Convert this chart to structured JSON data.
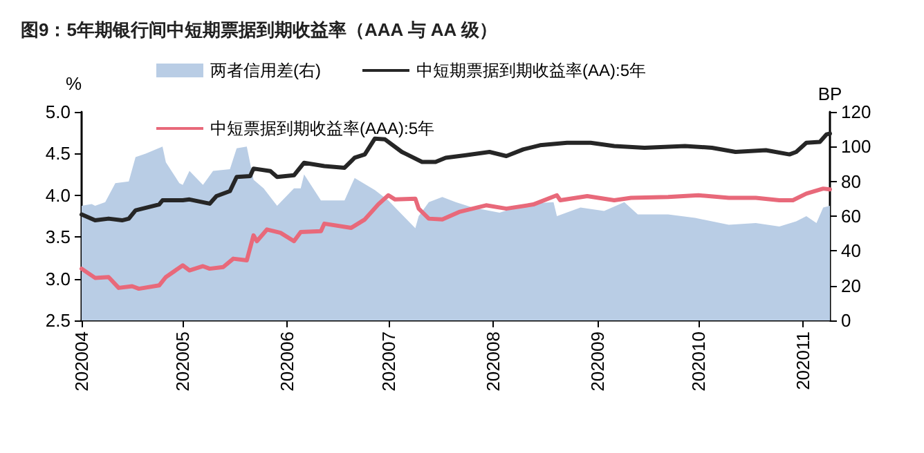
{
  "chart_data": {
    "type": "line",
    "title": "图9：5年期银行间中短期票据到期收益率（AAA 与 AA 级）",
    "ylabel": "%",
    "y2label": "BP",
    "legend": "top",
    "grid": false,
    "marker": "none",
    "line_style": "solid",
    "xlim": [
      "2020-04-01",
      "2020-11-09"
    ],
    "xticks": [
      {
        "value": "2020-04-01",
        "label": "202004"
      },
      {
        "value": "2020-05-01",
        "label": "202005"
      },
      {
        "value": "2020-06-01",
        "label": "202006"
      },
      {
        "value": "2020-07-01",
        "label": "202007"
      },
      {
        "value": "2020-08-01",
        "label": "202008"
      },
      {
        "value": "2020-09-01",
        "label": "202009"
      },
      {
        "value": "2020-10-01",
        "label": "202010"
      },
      {
        "value": "2020-11-01",
        "label": "202011"
      }
    ],
    "ylim": [
      2.5,
      5.0
    ],
    "yticks": [
      {
        "value": 2.5,
        "label": "2.5"
      },
      {
        "value": 3.0,
        "label": "3.0"
      },
      {
        "value": 3.5,
        "label": "3.5"
      },
      {
        "value": 4.0,
        "label": "4.0"
      },
      {
        "value": 4.5,
        "label": "4.5"
      },
      {
        "value": 5.0,
        "label": "5.0"
      }
    ],
    "y2lim": [
      0,
      120
    ],
    "y2ticks": [
      0,
      20,
      40,
      60,
      80,
      100,
      120
    ],
    "series": [
      {
        "name": "两者信用差(右)",
        "type": "area",
        "axis": "y2",
        "color": "#b9cde5",
        "x": [
          "2020-04-01",
          "2020-04-04",
          "2020-04-05",
          "2020-04-08",
          "2020-04-11",
          "2020-04-15",
          "2020-04-17",
          "2020-04-20",
          "2020-04-25",
          "2020-04-26",
          "2020-04-30",
          "2020-05-01",
          "2020-05-03",
          "2020-05-07",
          "2020-05-10",
          "2020-05-15",
          "2020-05-17",
          "2020-05-20",
          "2020-05-22",
          "2020-05-25",
          "2020-05-29",
          "2020-06-03",
          "2020-06-05",
          "2020-06-06",
          "2020-06-11",
          "2020-06-18",
          "2020-06-21",
          "2020-06-27",
          "2020-07-01",
          "2020-07-04",
          "2020-07-09",
          "2020-07-10",
          "2020-07-13",
          "2020-07-17",
          "2020-07-21",
          "2020-07-26",
          "2020-08-03",
          "2020-08-11",
          "2020-08-19",
          "2020-08-20",
          "2020-08-27",
          "2020-09-03",
          "2020-09-09",
          "2020-09-13",
          "2020-09-22",
          "2020-09-30",
          "2020-10-10",
          "2020-10-18",
          "2020-10-25",
          "2020-10-30",
          "2020-11-02",
          "2020-11-05",
          "2020-11-07",
          "2020-11-09"
        ],
        "values": [
          66,
          67,
          66,
          68,
          79,
          80,
          94,
          96,
          100,
          91,
          79,
          78,
          86,
          78,
          86,
          87,
          99,
          100,
          81,
          76,
          66,
          76,
          76,
          84,
          69,
          69,
          82,
          75,
          69,
          63,
          53,
          60,
          68,
          71,
          68,
          65,
          62,
          67,
          68,
          60,
          65,
          63,
          68,
          61,
          61,
          59,
          55,
          56,
          54,
          57,
          60,
          56,
          65,
          66
        ]
      },
      {
        "name": "中短期票据到期收益率(AA):5年",
        "color": "#262626",
        "x": [
          "2020-04-01",
          "2020-04-05",
          "2020-04-09",
          "2020-04-13",
          "2020-04-15",
          "2020-04-17",
          "2020-04-24",
          "2020-04-25",
          "2020-05-01",
          "2020-05-03",
          "2020-05-09",
          "2020-05-11",
          "2020-05-15",
          "2020-05-17",
          "2020-05-21",
          "2020-05-22",
          "2020-05-27",
          "2020-05-29",
          "2020-06-03",
          "2020-06-06",
          "2020-06-12",
          "2020-06-18",
          "2020-06-21",
          "2020-06-24",
          "2020-06-27",
          "2020-06-30",
          "2020-07-05",
          "2020-07-06",
          "2020-07-11",
          "2020-07-15",
          "2020-07-18",
          "2020-07-24",
          "2020-07-31",
          "2020-08-05",
          "2020-08-10",
          "2020-08-15",
          "2020-08-23",
          "2020-08-30",
          "2020-09-06",
          "2020-09-15",
          "2020-09-27",
          "2020-10-05",
          "2020-10-12",
          "2020-10-21",
          "2020-10-28",
          "2020-10-30",
          "2020-11-02",
          "2020-11-06",
          "2020-11-08",
          "2020-11-09"
        ],
        "values": [
          3.77,
          3.7,
          3.72,
          3.7,
          3.72,
          3.82,
          3.89,
          3.94,
          3.94,
          3.95,
          3.9,
          3.99,
          4.05,
          4.22,
          4.23,
          4.32,
          4.29,
          4.22,
          4.24,
          4.39,
          4.35,
          4.33,
          4.45,
          4.49,
          4.68,
          4.67,
          4.52,
          4.5,
          4.4,
          4.4,
          4.45,
          4.48,
          4.52,
          4.47,
          4.55,
          4.6,
          4.63,
          4.63,
          4.59,
          4.57,
          4.59,
          4.57,
          4.52,
          4.54,
          4.49,
          4.52,
          4.63,
          4.64,
          4.73,
          4.74
        ]
      },
      {
        "name": "中短票据到期收益率(AAA):5年",
        "color": "#e8697a",
        "x": [
          "2020-04-01",
          "2020-04-05",
          "2020-04-09",
          "2020-04-12",
          "2020-04-16",
          "2020-04-18",
          "2020-04-24",
          "2020-04-26",
          "2020-05-01",
          "2020-05-03",
          "2020-05-07",
          "2020-05-09",
          "2020-05-13",
          "2020-05-16",
          "2020-05-20",
          "2020-05-22",
          "2020-05-23",
          "2020-05-26",
          "2020-05-30",
          "2020-06-03",
          "2020-06-05",
          "2020-06-11",
          "2020-06-12",
          "2020-06-20",
          "2020-06-24",
          "2020-06-28",
          "2020-07-01",
          "2020-07-03",
          "2020-07-09",
          "2020-07-10",
          "2020-07-13",
          "2020-07-17",
          "2020-07-22",
          "2020-07-30",
          "2020-08-05",
          "2020-08-13",
          "2020-08-20",
          "2020-08-21",
          "2020-08-29",
          "2020-09-06",
          "2020-09-11",
          "2020-09-22",
          "2020-10-01",
          "2020-10-10",
          "2020-10-18",
          "2020-10-25",
          "2020-10-29",
          "2020-11-02",
          "2020-11-07",
          "2020-11-09"
        ],
        "values": [
          3.12,
          3.01,
          3.02,
          2.89,
          2.91,
          2.88,
          2.92,
          3.02,
          3.16,
          3.1,
          3.15,
          3.12,
          3.14,
          3.24,
          3.22,
          3.52,
          3.45,
          3.59,
          3.55,
          3.45,
          3.56,
          3.57,
          3.66,
          3.61,
          3.71,
          3.89,
          4.0,
          3.95,
          3.96,
          3.84,
          3.72,
          3.71,
          3.8,
          3.88,
          3.84,
          3.89,
          4.0,
          3.94,
          3.99,
          3.94,
          3.97,
          3.98,
          4.0,
          3.97,
          3.97,
          3.94,
          3.94,
          4.02,
          4.08,
          4.07
        ]
      }
    ]
  }
}
